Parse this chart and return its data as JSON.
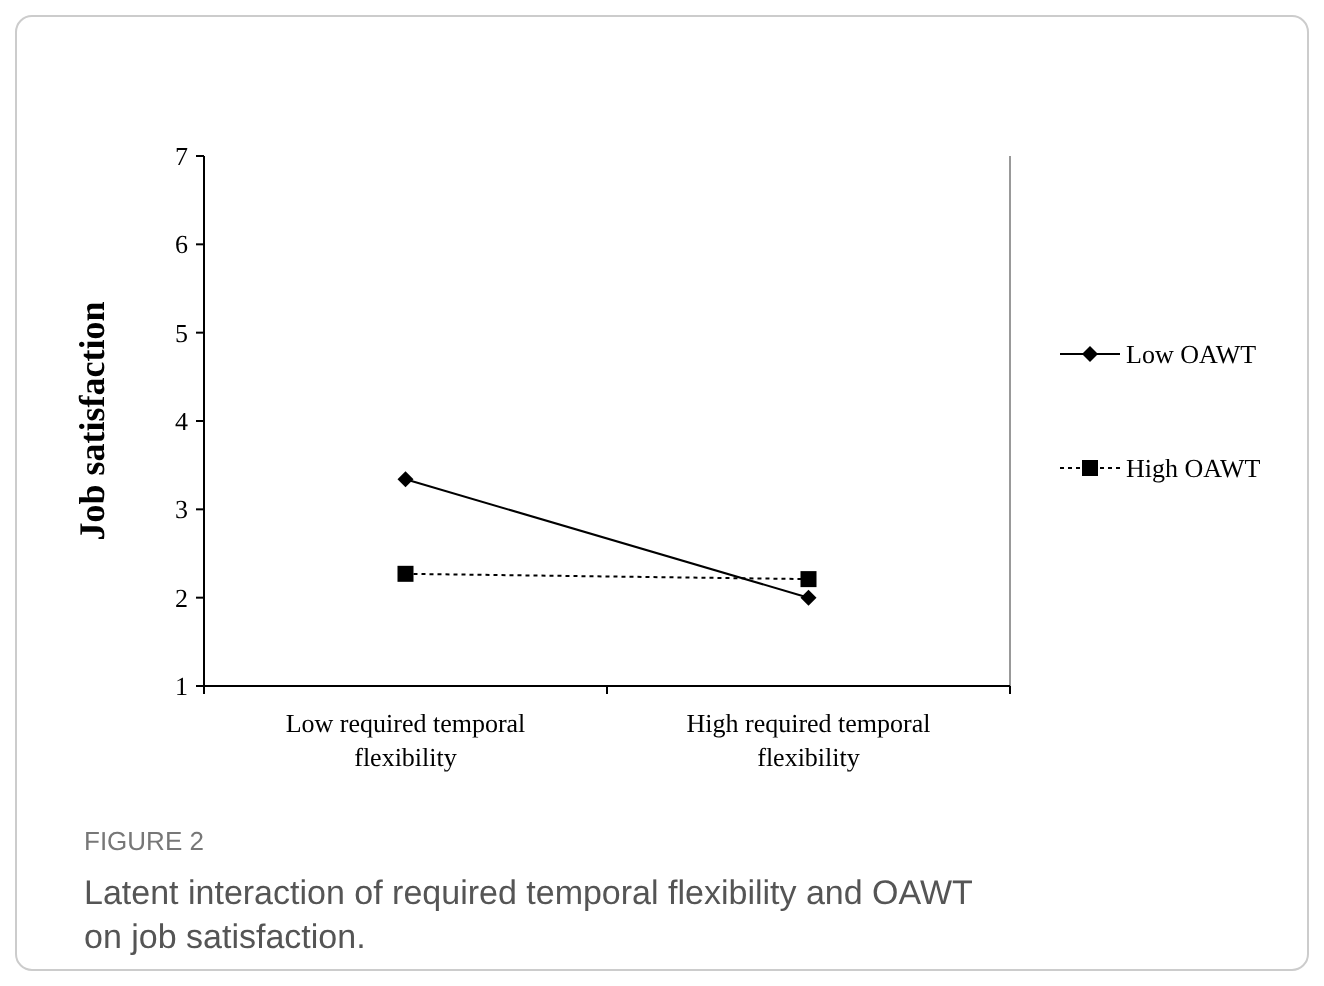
{
  "chart_data": {
    "type": "line",
    "ylabel": "Job satisfaction",
    "categories": [
      "Low required temporal flexibility",
      "High required temporal flexibility"
    ],
    "series": [
      {
        "name": "Low OAWT",
        "color": "#000000",
        "values": [
          3.34,
          2.0
        ],
        "marker": "diamond",
        "line_style": "solid"
      },
      {
        "name": "High OAWT",
        "color": "#000000",
        "values": [
          2.27,
          2.21
        ],
        "marker": "square",
        "line_style": "dotted"
      }
    ],
    "ylim": [
      1,
      7
    ],
    "yticks": [
      1,
      2,
      3,
      4,
      5,
      6,
      7
    ],
    "grid": false,
    "legend": "right",
    "annotations": [
      "FIGURE 2",
      "Latent interaction of required temporal flexibility and OAWT on job satisfaction."
    ]
  }
}
